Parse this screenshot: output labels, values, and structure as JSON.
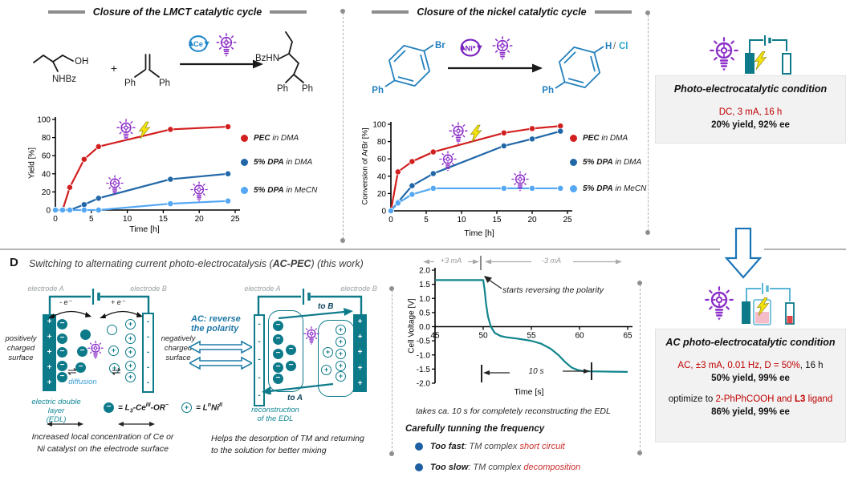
{
  "icons": {
    "light_bulb": "bulb-icon",
    "lightning": "bolt-icon",
    "catalytic_cycle": "cycle-arrows-icon",
    "electro_cell": "electro-cell-icon",
    "battery": "battery-icon",
    "down_arrow": "block-down-arrow-icon"
  },
  "colors": {
    "teal": "#0d7a8a",
    "purple": "#8c2fc8",
    "red_series": "#d21f1f",
    "blue_series": "#2167a8",
    "light_blue_series": "#53a7f4",
    "dark_red_text": "#c00000",
    "structure_blue": "#2380bd",
    "accent_blue": "#1a74b8"
  },
  "headers": {
    "lmct": "Closure of the LMCT catalytic cycle",
    "nickel": "Closure of the nickel catalytic cycle"
  },
  "scheme1": {
    "oh": "OH",
    "nhbz": "NHBz",
    "plus": "+",
    "ph_l": "Ph",
    "ph_r": "Ph",
    "cat": "Ce",
    "bzhn": "BzHN",
    "prod_ph_l": "Ph",
    "prod_ph_r": "Ph"
  },
  "scheme2": {
    "br": "Br",
    "ph": "Ph",
    "cat": "Ni*",
    "h": "H",
    "slash": "/",
    "cl": "Cl",
    "prod_ph": "Ph"
  },
  "chart_data": [
    {
      "type": "line",
      "xlabel": "Time [h]",
      "ylabel": "Yield [%]",
      "xlim": [
        0,
        25
      ],
      "ylim": [
        0,
        100
      ],
      "xticks": [
        0,
        5,
        10,
        15,
        20,
        25
      ],
      "yticks": [
        0,
        20,
        40,
        60,
        80,
        100
      ],
      "grid": false,
      "legend_position": "right",
      "series": [
        {
          "name": "PEC in DMA",
          "color": "#d21f1f",
          "x": [
            0,
            1,
            2,
            4,
            6,
            16,
            24
          ],
          "y": [
            0,
            0,
            25,
            56,
            70,
            89,
            92
          ]
        },
        {
          "name": "5% DPA in DMA",
          "color": "#2167a8",
          "x": [
            0,
            1,
            2,
            4,
            6,
            16,
            24
          ],
          "y": [
            0,
            0,
            0,
            6,
            13,
            34,
            40
          ]
        },
        {
          "name": "5% DPA in MeCN",
          "color": "#53a7f4",
          "x": [
            0,
            1,
            2,
            4,
            6,
            16,
            24
          ],
          "y": [
            0,
            0,
            0,
            0,
            0,
            7,
            10
          ]
        }
      ]
    },
    {
      "type": "line",
      "xlabel": "Time [h]",
      "ylabel": "Conversion of ArBr [%]",
      "xlim": [
        0,
        25
      ],
      "ylim": [
        0,
        100
      ],
      "xticks": [
        0,
        5,
        10,
        15,
        20,
        25
      ],
      "yticks": [
        0,
        20,
        40,
        60,
        80,
        100
      ],
      "grid": false,
      "legend_position": "right",
      "series": [
        {
          "name": "PEC in DMA",
          "color": "#d21f1f",
          "x": [
            0,
            1,
            3,
            6,
            16,
            20,
            24
          ],
          "y": [
            0,
            45,
            57,
            68,
            90,
            95,
            98
          ]
        },
        {
          "name": "5% DPA in DMA",
          "color": "#2167a8",
          "x": [
            0,
            1,
            3,
            6,
            16,
            20,
            24
          ],
          "y": [
            0,
            10,
            29,
            43,
            75,
            83,
            92
          ]
        },
        {
          "name": "5% DPA in MeCN",
          "color": "#53a7f4",
          "x": [
            0,
            1,
            3,
            6,
            16,
            20,
            24
          ],
          "y": [
            0,
            9,
            19,
            26,
            26,
            26,
            26
          ]
        }
      ]
    },
    {
      "type": "line",
      "xlabel": "Time [s]",
      "ylabel": "Cell Voltage [V]",
      "xlim": [
        45,
        65
      ],
      "ylim": [
        -2,
        2
      ],
      "xticks": [
        45,
        50,
        55,
        60,
        65
      ],
      "yticks": [
        -2,
        -1.5,
        -1,
        -0.5,
        0,
        0.5,
        1,
        1.5,
        2
      ],
      "ytick_decimals": 1,
      "grid": false,
      "series": [
        {
          "name": "cell voltage",
          "color": "#12858d",
          "markers": false,
          "x": [
            45,
            50,
            50.15,
            50.3,
            50.5,
            50.8,
            51.2,
            51.8,
            52.5,
            53.5,
            55,
            56,
            57,
            57.8,
            58.5,
            59.2,
            59.8,
            60.3,
            61,
            65
          ],
          "y": [
            1.65,
            1.65,
            1.3,
            0.8,
            0.35,
            0,
            -0.22,
            -0.33,
            -0.38,
            -0.42,
            -0.5,
            -0.6,
            -0.78,
            -1.0,
            -1.25,
            -1.45,
            -1.53,
            -1.57,
            -1.58,
            -1.6
          ]
        }
      ]
    }
  ],
  "legend_items": [
    {
      "bold": "PEC",
      "rest": " in DMA"
    },
    {
      "bold": "5% DPA",
      "rest": " in DMA"
    },
    {
      "bold": "5% DPA",
      "rest": " in MeCN"
    }
  ],
  "dc_box": {
    "title": "Photo-electrocatalytic condition",
    "conditions": "DC, 3 mA, 16 h",
    "result": "20% yield, 92% ee"
  },
  "flow": {
    "section_label": "D",
    "title_pre": "Switching to alternating current photo-electrocatalysis (",
    "title_bold": "AC-PEC",
    "title_post": ") (this work)"
  },
  "edl_left": {
    "electrode_a": "electrode A",
    "electrode_b": "electrode B",
    "pos": "positively\ncharged\nsurface",
    "neg": "negatively\ncharged\nsurface",
    "minus_e": "- e⁻",
    "plus_e": "+ e⁻",
    "equil": "⇌",
    "diffusion": "diffusion",
    "edl_label": "electric double layer\n(EDL)",
    "caption": "Increased local concentration of Ce or\nNi catalyst on the electrode surface"
  },
  "species_legend": {
    "ce_pre": "= L",
    "ce_sub": "3",
    "ce_mid": "-Ce",
    "ce_sup": "III",
    "ce_post": "-OR",
    "ce_sup2": "−",
    "ni_pre": "= L",
    "ni_sup": "n",
    "ni_mid": "Ni",
    "ni_sup2": "II"
  },
  "ac_switch": {
    "label": "AC: reverse\nthe polarity"
  },
  "edl_right": {
    "electrode_a": "electrode A",
    "electrode_b": "electrode B",
    "to_b": "to B",
    "to_a": "to A",
    "recon": "reconstruction\nof the EDL",
    "caption": "Helps the desorption of TM and returning\nto the solution for better mixing"
  },
  "voltage_notes": {
    "plus_region": "+3 mA",
    "minus_region": "-3 mA",
    "reversing": "starts reversing the polarity",
    "ten_s": "10 s",
    "caption": "takes ca. 10 s for completely reconstructing the EDL"
  },
  "frequency": {
    "title": "Carefully tunning the frequency",
    "bullets": [
      {
        "bold": "Too fast",
        "mid": ": TM complex ",
        "red": "short circuit"
      },
      {
        "bold": "Too slow",
        "mid": ": TM complex ",
        "red": "decomposition"
      }
    ]
  },
  "ac_box": {
    "title": "AC photo-electrocatalytic condition",
    "cond_red": "AC, ±3 mA, 0.01 Hz, D = 50%",
    "cond_black": ", 16 h",
    "result1": "50% yield, 99% ee",
    "opt_black": "optimize to ",
    "opt_red": "2-PhPhCOOH and ",
    "opt_red_bold": "L3",
    "opt_red2": " ligand",
    "result2": "86% yield, 99% ee"
  }
}
